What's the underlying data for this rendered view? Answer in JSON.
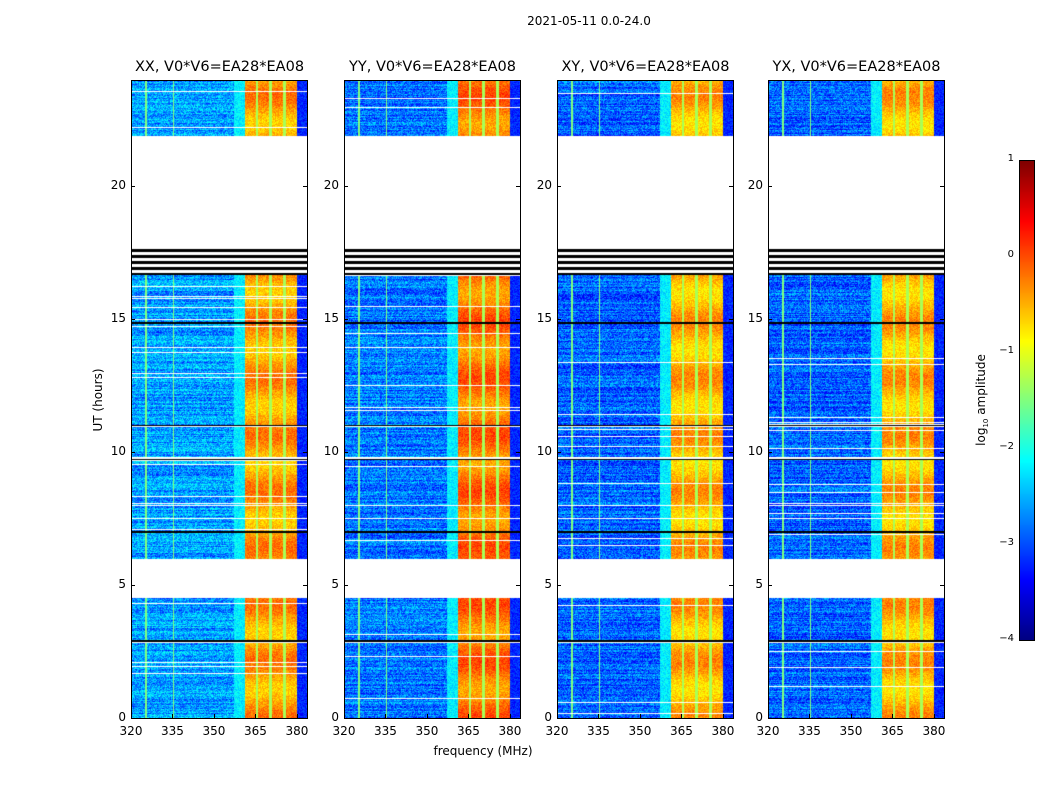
{
  "chart_data": {
    "type": "heatmap",
    "title": "2021-05-11 0.0-24.0",
    "xlabel": "frequency (MHz)",
    "ylabel": "UT (hours)",
    "xlim": [
      320,
      384
    ],
    "ylim": [
      0,
      24
    ],
    "xticks": [
      "320",
      "335",
      "350",
      "365",
      "380"
    ],
    "yticks": [
      "0",
      "5",
      "10",
      "15",
      "20"
    ],
    "panels": [
      {
        "title": "XX, V0*V6=EA28*EA08",
        "band_level": -0.4,
        "background_level": -2.6
      },
      {
        "title": "YY, V0*V6=EA28*EA08",
        "band_level": -0.2,
        "background_level": -2.8
      },
      {
        "title": "XY, V0*V6=EA28*EA08",
        "band_level": -0.5,
        "background_level": -2.9
      },
      {
        "title": "YX, V0*V6=EA28*EA08",
        "band_level": -0.5,
        "background_level": -2.9
      }
    ],
    "data_intervals_hours": [
      [
        0,
        4.55
      ],
      [
        6.0,
        16.7
      ],
      [
        21.95,
        24
      ]
    ],
    "flagged_black_hours": [
      [
        16.7,
        17.7
      ],
      [
        2.85,
        2.95
      ],
      [
        9.75,
        9.85
      ],
      [
        14.85,
        14.95
      ],
      [
        7.0,
        7.05
      ],
      [
        7.5,
        7.55
      ],
      [
        8.0,
        8.05
      ],
      [
        11.0,
        11.05
      ]
    ],
    "strong_band_mhz": [
      361,
      380
    ],
    "colorbar": {
      "label": "log10 amplitude",
      "label_main": "log",
      "label_sub": "10",
      "label_rest": " amplitude",
      "range": [
        -4,
        1
      ],
      "colormap": "jet",
      "ticks": [
        "1",
        "0",
        "−1",
        "−2",
        "−3",
        "−4"
      ]
    }
  }
}
